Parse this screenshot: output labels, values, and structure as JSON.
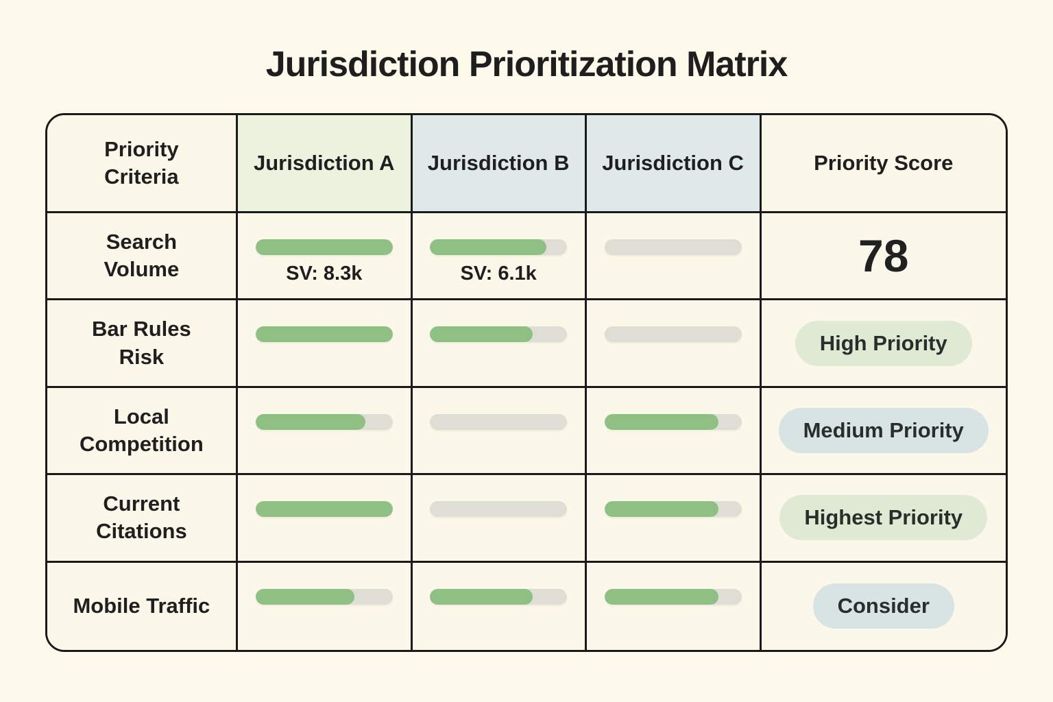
{
  "page": {
    "title": "Jurisdiction Prioritization Matrix"
  },
  "colors": {
    "background": "#fdf9eb",
    "cell_background": "#fbf7e9",
    "header_jurisdiction_a": "#ebf2de",
    "header_jurisdiction_b": "#dfe9ea",
    "header_jurisdiction_c": "#dfe9ea",
    "bar_fill": "#8fc083",
    "bar_track": "#dfded4",
    "badge_green": "#dfe9d4",
    "badge_blue": "#d8e3e4",
    "grid_border": "#1a1a1a",
    "text": "#1e1e1e"
  },
  "table": {
    "columns": [
      "Priority Criteria",
      "Jurisdiction A",
      "Jurisdiction B",
      "Jurisdiction C",
      "Priority Score"
    ],
    "rows": [
      {
        "criteria": "Search Volume",
        "bars": [
          {
            "jurisdiction": "A",
            "fill_pct": 100,
            "label": "SV: 8.3k"
          },
          {
            "jurisdiction": "B",
            "fill_pct": 85,
            "label": "SV: 6.1k"
          },
          {
            "jurisdiction": "C",
            "fill_pct": 0
          }
        ],
        "score": {
          "kind": "number",
          "text": "78"
        }
      },
      {
        "criteria": "Bar Rules Risk",
        "bars": [
          {
            "jurisdiction": "A",
            "fill_pct": 100
          },
          {
            "jurisdiction": "B",
            "fill_pct": 75
          },
          {
            "jurisdiction": "C",
            "fill_pct": 0
          }
        ],
        "score": {
          "kind": "badge",
          "text": "High Priority",
          "variant": "green"
        }
      },
      {
        "criteria": "Local Competition",
        "bars": [
          {
            "jurisdiction": "A",
            "fill_pct": 80
          },
          {
            "jurisdiction": "B",
            "fill_pct": 0
          },
          {
            "jurisdiction": "C",
            "fill_pct": 83
          }
        ],
        "score": {
          "kind": "badge",
          "text": "Medium Priority",
          "variant": "blue"
        }
      },
      {
        "criteria": "Current Citations",
        "bars": [
          {
            "jurisdiction": "A",
            "fill_pct": 100
          },
          {
            "jurisdiction": "B",
            "fill_pct": 0
          },
          {
            "jurisdiction": "C",
            "fill_pct": 83
          }
        ],
        "score": {
          "kind": "badge",
          "text": "Highest Priority",
          "variant": "green"
        }
      },
      {
        "criteria": "Mobile Traffic",
        "bars": [
          {
            "jurisdiction": "A",
            "fill_pct": 72
          },
          {
            "jurisdiction": "B",
            "fill_pct": 75
          },
          {
            "jurisdiction": "C",
            "fill_pct": 83
          }
        ],
        "score": {
          "kind": "badge",
          "text": "Consider",
          "variant": "blue"
        }
      }
    ]
  }
}
